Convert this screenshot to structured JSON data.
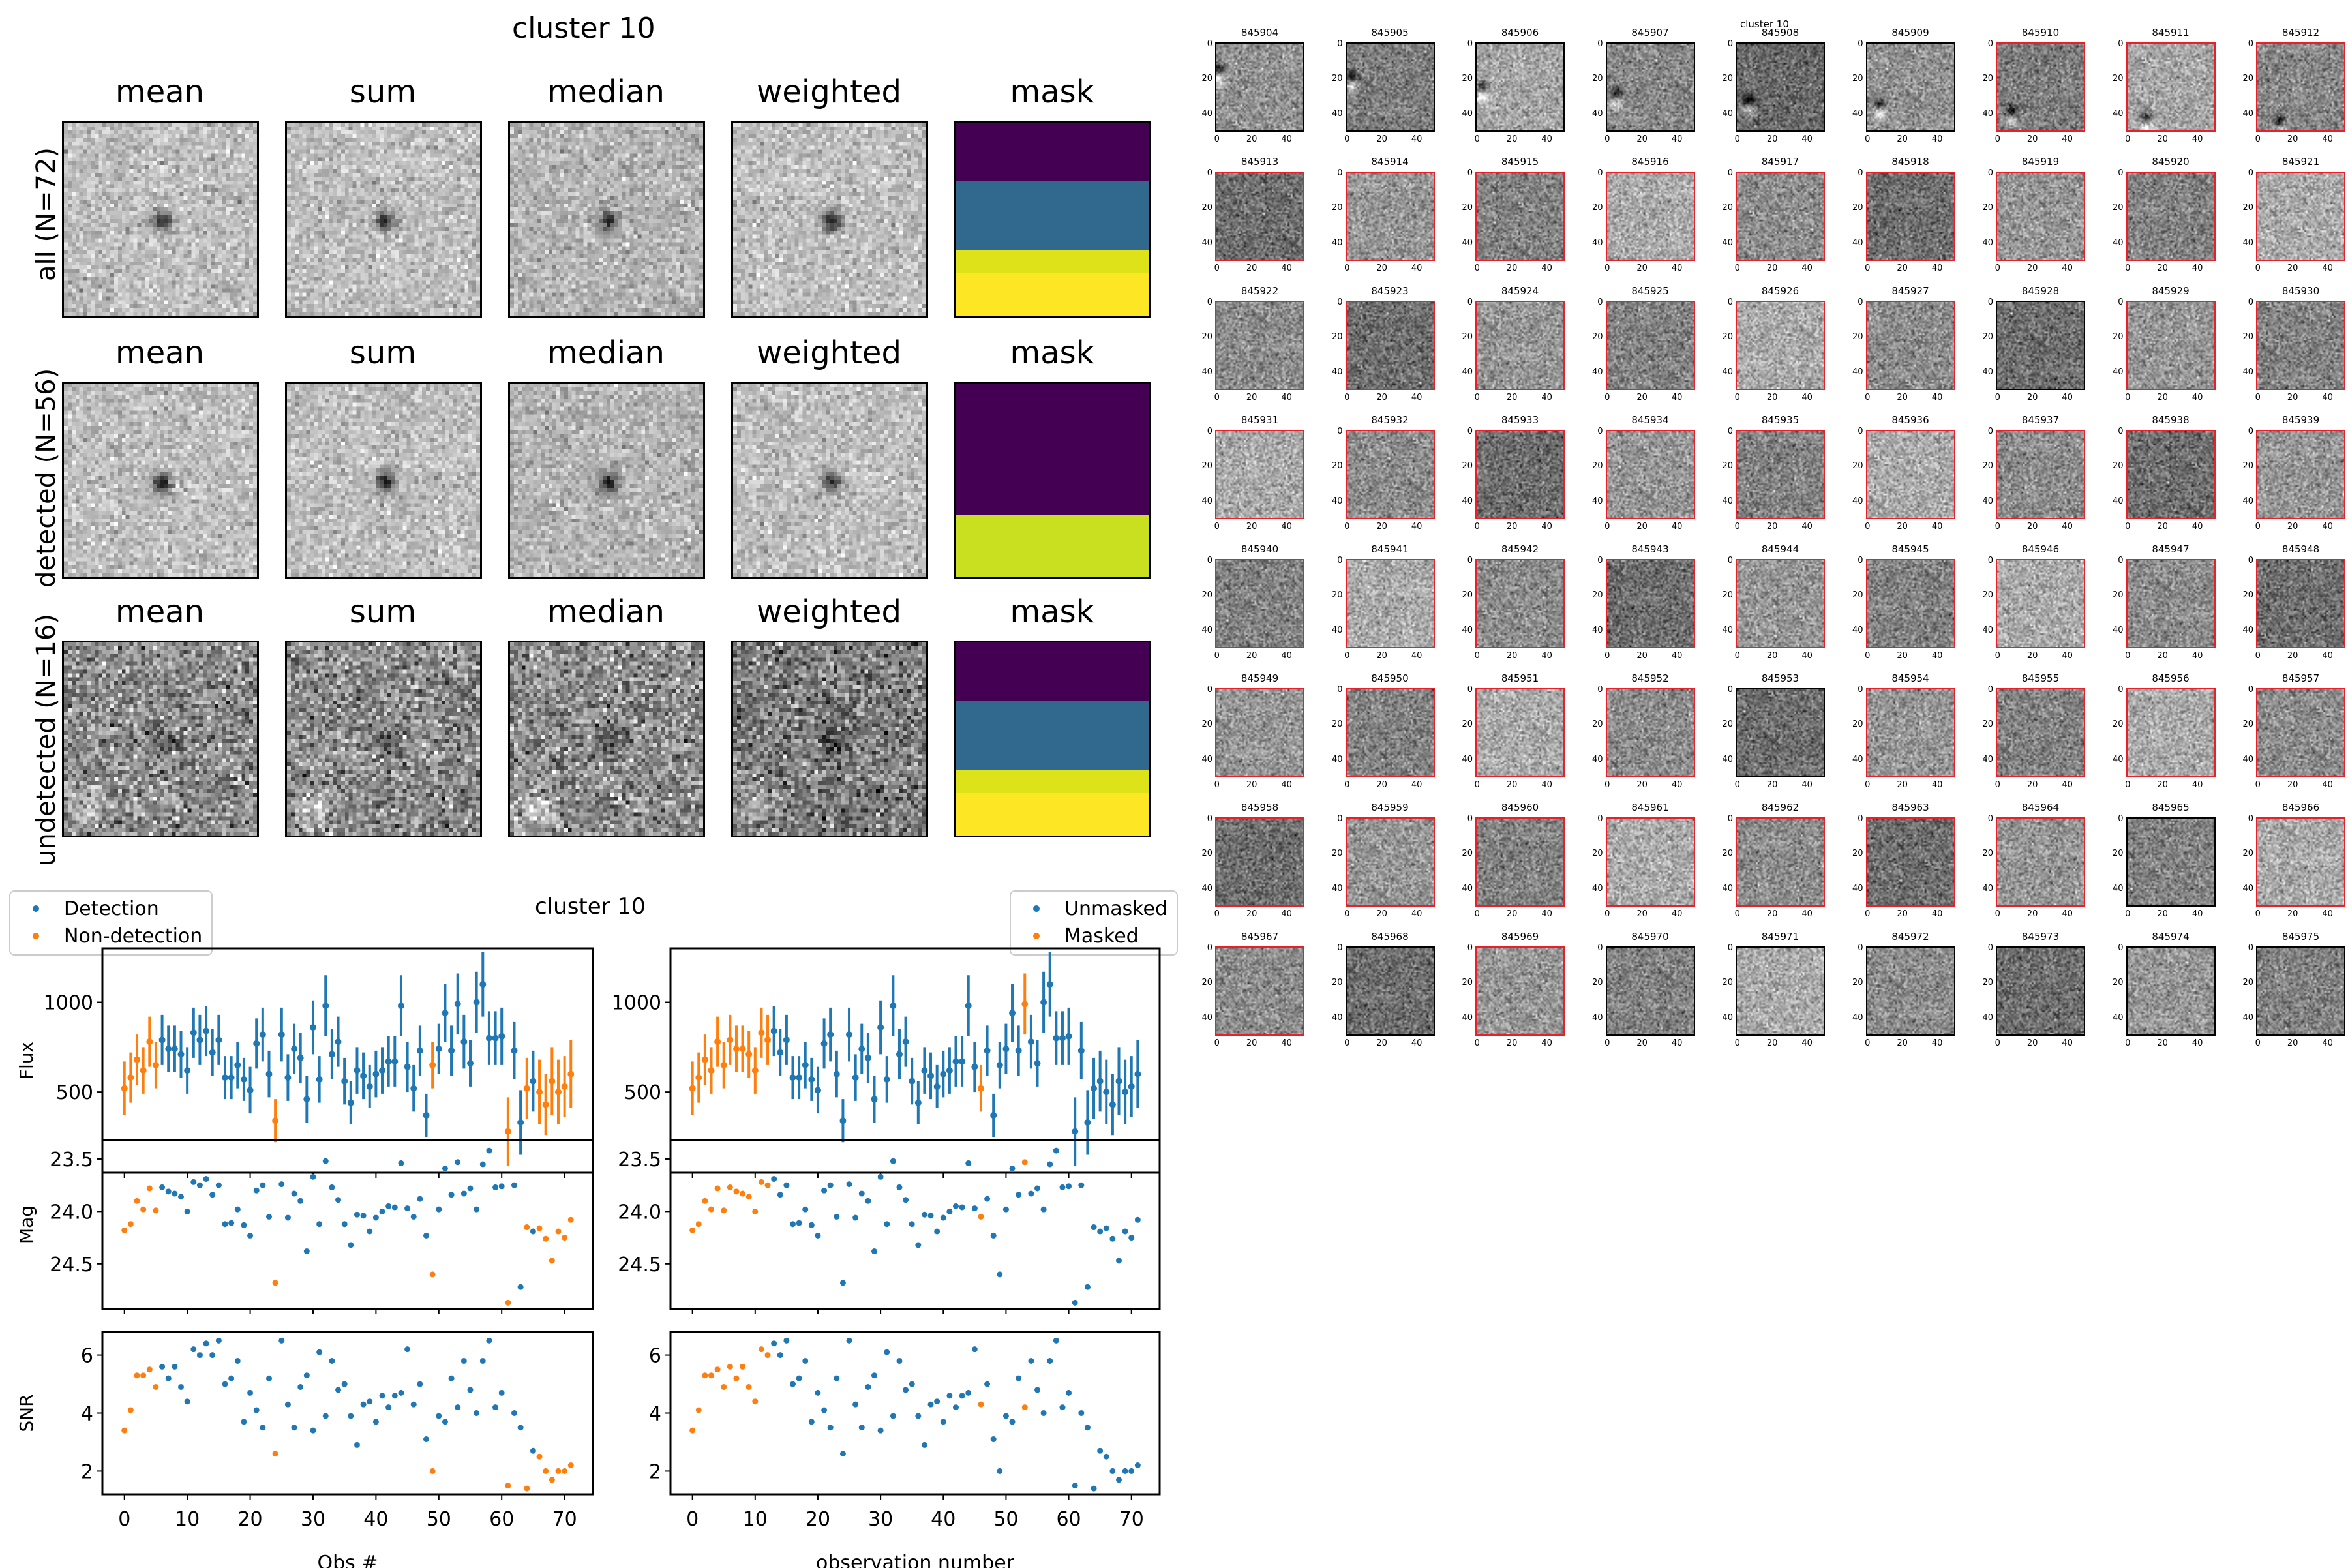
{
  "stacks_figure": {
    "title": "cluster 10",
    "columns": [
      "mean",
      "sum",
      "median",
      "weighted",
      "mask"
    ],
    "rows": [
      {
        "label": "all (N=72)",
        "n": 72,
        "kind": "all",
        "mask_bands": [
          "#440154",
          "#31688e",
          "#dde318",
          "#fde725"
        ]
      },
      {
        "label": "detected (N=56)",
        "n": 56,
        "kind": "detected",
        "mask_bands": [
          "#440154",
          "#c8e020"
        ]
      },
      {
        "label": "undetected (N=16)",
        "n": 16,
        "kind": "undetected",
        "mask_bands": [
          "#440154",
          "#31688e",
          "#dde318",
          "#fde725"
        ]
      }
    ]
  },
  "lightcurve_figure": {
    "title": "cluster 10",
    "left_legend": [
      {
        "label": "Detection",
        "color": "#1f77b4"
      },
      {
        "label": "Non-detection",
        "color": "#ff7f0e"
      }
    ],
    "right_legend": [
      {
        "label": "Unmasked",
        "color": "#1f77b4"
      },
      {
        "label": "Masked",
        "color": "#ff7f0e"
      }
    ],
    "left_xlabel": "Obs #",
    "right_xlabel": "observation number"
  },
  "chart_data": [
    {
      "type": "scatter",
      "title": "Flux",
      "ylabel": "Flux",
      "xlabel": "",
      "yticks": [
        500,
        1000
      ],
      "ylim": [
        50,
        1300
      ],
      "xlim": [
        -3.5,
        74.5
      ],
      "xticks": [
        0,
        10,
        20,
        30,
        40,
        50,
        60,
        70
      ],
      "x": [
        0,
        1,
        2,
        3,
        4,
        5,
        6,
        7,
        8,
        9,
        10,
        11,
        12,
        13,
        14,
        15,
        16,
        17,
        18,
        19,
        20,
        21,
        22,
        23,
        24,
        25,
        26,
        27,
        28,
        29,
        30,
        31,
        32,
        33,
        34,
        35,
        36,
        37,
        38,
        39,
        40,
        41,
        42,
        43,
        44,
        45,
        46,
        47,
        48,
        49,
        50,
        51,
        52,
        53,
        54,
        55,
        56,
        57,
        58,
        59,
        60,
        61,
        62,
        63,
        64,
        65,
        66,
        67,
        68,
        69,
        70,
        71
      ],
      "flux": [
        520,
        580,
        680,
        620,
        780,
        650,
        790,
        740,
        740,
        710,
        620,
        830,
        790,
        840,
        720,
        790,
        580,
        580,
        650,
        570,
        510,
        770,
        820,
        600,
        340,
        820,
        580,
        740,
        690,
        460,
        860,
        570,
        980,
        710,
        780,
        560,
        440,
        620,
        590,
        530,
        600,
        620,
        670,
        670,
        980,
        640,
        520,
        730,
        370,
        650,
        740,
        940,
        730,
        990,
        780,
        660,
        1000,
        1100,
        800,
        800,
        810,
        280,
        730,
        330,
        520,
        560,
        500,
        430,
        560,
        500,
        530,
        600
      ],
      "flux_err": [
        150,
        140,
        140,
        130,
        140,
        130,
        140,
        130,
        130,
        130,
        130,
        140,
        140,
        140,
        130,
        140,
        120,
        120,
        130,
        120,
        130,
        140,
        150,
        130,
        120,
        150,
        130,
        140,
        140,
        130,
        150,
        130,
        170,
        140,
        140,
        130,
        120,
        130,
        130,
        120,
        130,
        130,
        140,
        140,
        170,
        140,
        130,
        140,
        120,
        130,
        140,
        160,
        140,
        170,
        150,
        130,
        170,
        180,
        150,
        150,
        160,
        190,
        160,
        180,
        170,
        170,
        180,
        170,
        190,
        180,
        170,
        190
      ],
      "mag": [
        24.18,
        24.12,
        23.9,
        23.98,
        23.78,
        23.99,
        23.77,
        23.81,
        23.83,
        23.86,
        24.0,
        23.72,
        23.75,
        23.69,
        23.84,
        23.75,
        24.12,
        24.11,
        23.98,
        24.13,
        24.23,
        23.8,
        23.75,
        24.05,
        24.68,
        23.74,
        24.06,
        23.83,
        23.9,
        24.38,
        23.67,
        24.12,
        23.52,
        23.77,
        23.89,
        24.12,
        24.32,
        24.03,
        24.04,
        24.19,
        24.06,
        24.0,
        23.95,
        23.96,
        23.54,
        23.97,
        24.05,
        23.88,
        24.23,
        24.6,
        23.98,
        23.59,
        23.84,
        23.53,
        23.83,
        23.78,
        23.98,
        23.55,
        23.42,
        23.77,
        23.76,
        24.87,
        23.75,
        24.72,
        24.15,
        24.19,
        24.16,
        24.26,
        24.47,
        24.19,
        24.25,
        24.08
      ],
      "snr": [
        3.4,
        4.1,
        5.3,
        5.3,
        5.5,
        4.9,
        5.6,
        5.2,
        5.6,
        4.9,
        4.4,
        6.2,
        6.0,
        6.4,
        6.0,
        6.5,
        5.0,
        5.2,
        5.8,
        3.7,
        4.7,
        4.1,
        3.5,
        5.2,
        2.6,
        6.5,
        4.3,
        3.5,
        4.9,
        5.3,
        3.4,
        6.1,
        3.9,
        5.8,
        4.8,
        5.0,
        3.9,
        2.9,
        4.3,
        4.4,
        3.7,
        4.6,
        4.2,
        4.6,
        4.7,
        6.2,
        4.3,
        5.0,
        3.1,
        2.0,
        3.9,
        3.7,
        5.2,
        4.2,
        5.8,
        4.8,
        4.0,
        5.8,
        6.5,
        4.2,
        4.7,
        1.5,
        4.0,
        3.5,
        1.4,
        2.7,
        2.5,
        2.0,
        1.7,
        2.0,
        2.0,
        2.2
      ],
      "mag_yticks": [
        23.5,
        24.0,
        24.5
      ],
      "mag_ylim": [
        23.32,
        24.93
      ],
      "snr_yticks": [
        2,
        4,
        6
      ],
      "snr_ylim": [
        1.2,
        6.8
      ],
      "left_orange_indices": [
        0,
        1,
        2,
        3,
        4,
        5,
        24,
        49,
        61,
        64,
        66,
        67,
        68,
        69,
        70,
        71
      ],
      "right_orange_indices": [
        0,
        1,
        2,
        3,
        4,
        5,
        6,
        7,
        8,
        9,
        10,
        11,
        12,
        46,
        53
      ],
      "series": [
        {
          "name": "Detection",
          "color": "#1f77b4"
        },
        {
          "name": "Non-detection",
          "color": "#ff7f0e"
        },
        {
          "name": "Unmasked",
          "color": "#1f77b4"
        },
        {
          "name": "Masked",
          "color": "#ff7f0e"
        }
      ]
    }
  ],
  "thumbnails": {
    "title": "cluster 10",
    "axis_ticks": [
      "0",
      "20",
      "40"
    ],
    "ids": [
      "845904",
      "845905",
      "845906",
      "845907",
      "845908",
      "845909",
      "845910",
      "845911",
      "845912",
      "845913",
      "845914",
      "845915",
      "845916",
      "845917",
      "845918",
      "845919",
      "845920",
      "845921",
      "845922",
      "845923",
      "845924",
      "845925",
      "845926",
      "845927",
      "845928",
      "845929",
      "845930",
      "845931",
      "845932",
      "845933",
      "845934",
      "845935",
      "845936",
      "845937",
      "845938",
      "845939",
      "845940",
      "845941",
      "845942",
      "845943",
      "845944",
      "845945",
      "845946",
      "845947",
      "845948",
      "845949",
      "845950",
      "845951",
      "845952",
      "845953",
      "845954",
      "845955",
      "845956",
      "845957",
      "845958",
      "845959",
      "845960",
      "845961",
      "845962",
      "845963",
      "845964",
      "845965",
      "845966",
      "845967",
      "845968",
      "845969",
      "845970",
      "845971",
      "845972",
      "845973",
      "845974",
      "845975"
    ],
    "black_border_ids": [
      "845904",
      "845905",
      "845906",
      "845907",
      "845908",
      "845909",
      "845928",
      "845953",
      "845965",
      "845968",
      "845970",
      "845971",
      "845972",
      "845973",
      "845974",
      "845975"
    ],
    "border_colors": {
      "detected": "#e8202a",
      "undetected": "#000000"
    }
  }
}
